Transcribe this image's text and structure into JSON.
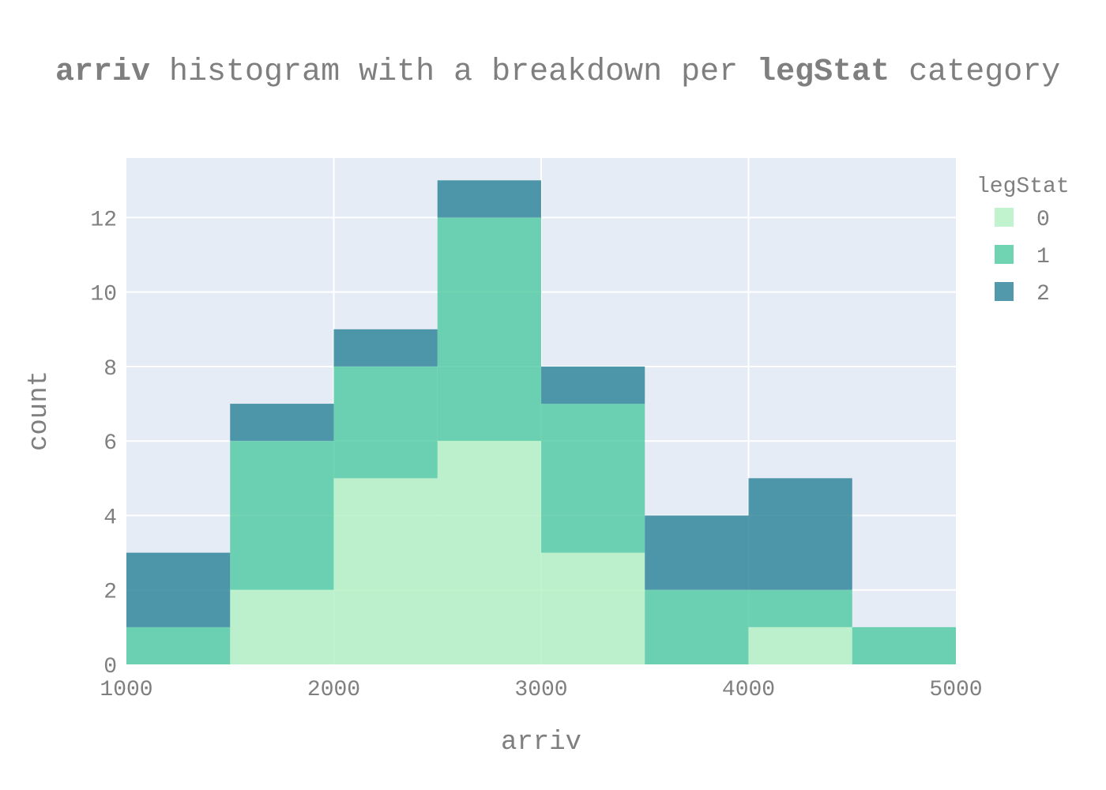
{
  "chart_data": {
    "type": "bar",
    "stacked": true,
    "title_parts": [
      {
        "text": "arriv",
        "bold": true
      },
      {
        "text": " histogram with a breakdown per ",
        "bold": false
      },
      {
        "text": "legStat",
        "bold": true
      },
      {
        "text": " category",
        "bold": false
      }
    ],
    "xlabel": "arriv",
    "ylabel": "count",
    "xlim": [
      1000,
      5000
    ],
    "ylim": [
      0,
      13.6
    ],
    "x_ticks": [
      1000,
      2000,
      3000,
      4000,
      5000
    ],
    "x_tick_labels": [
      "1000",
      "2000",
      "3000",
      "4000",
      "5000"
    ],
    "y_ticks": [
      0,
      2,
      4,
      6,
      8,
      10,
      12
    ],
    "y_tick_labels": [
      "0",
      "2",
      "4",
      "6",
      "8",
      "10",
      "12"
    ],
    "grid": true,
    "legend_placement": "right",
    "legend_title": "legStat",
    "bins": [
      [
        1000,
        1500
      ],
      [
        1500,
        2000
      ],
      [
        2000,
        2500
      ],
      [
        2500,
        3000
      ],
      [
        3000,
        3500
      ],
      [
        3500,
        4000
      ],
      [
        4000,
        4500
      ],
      [
        4500,
        5000
      ]
    ],
    "series": [
      {
        "name": "0",
        "color": "#b2f0c2",
        "values": [
          0,
          2,
          5,
          6,
          3,
          0,
          1,
          0
        ]
      },
      {
        "name": "1",
        "color": "#4cc9a0",
        "values": [
          1,
          4,
          3,
          6,
          4,
          2,
          1,
          1
        ]
      },
      {
        "name": "2",
        "color": "#277f96",
        "values": [
          2,
          1,
          1,
          1,
          1,
          2,
          3,
          0
        ]
      }
    ],
    "colors": {
      "plot_background": "#e5ecf6",
      "gridline": "#ffffff",
      "text": "#7f7f7f"
    }
  }
}
